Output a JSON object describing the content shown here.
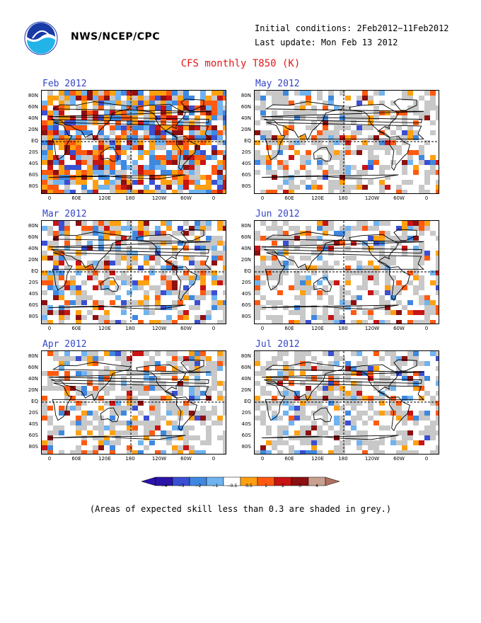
{
  "header": {
    "org": "NWS/NCEP/CPC",
    "initial_conditions": "Initial conditions: 2Feb2012−11Feb2012",
    "last_update": "Last update: Mon Feb 13 2012",
    "title": "CFS monthly T850 (K)"
  },
  "logo_icon": "noaa-logo-icon",
  "panels": [
    {
      "title": "Feb 2012",
      "intensity": 1.0
    },
    {
      "title": "May 2012",
      "intensity": 0.35
    },
    {
      "title": "Mar 2012",
      "intensity": 0.55
    },
    {
      "title": "Jun 2012",
      "intensity": 0.35
    },
    {
      "title": "Apr 2012",
      "intensity": 0.45
    },
    {
      "title": "Jul 2012",
      "intensity": 0.35
    }
  ],
  "lat_labels": [
    "80N",
    "60N",
    "40N",
    "20N",
    "EQ",
    "20S",
    "40S",
    "60S",
    "80S"
  ],
  "lon_labels": [
    "0",
    "60E",
    "120E",
    "180",
    "120W",
    "60W",
    "0"
  ],
  "colorbar": {
    "labels": [
      "−4",
      "−3",
      "−2",
      "−1",
      "−0.5",
      "0.5",
      "1",
      "2",
      "3",
      "4"
    ],
    "colors": [
      "#2a14a8",
      "#3a4fd2",
      "#3f88e0",
      "#6fb3f0",
      "#ffffff",
      "#ffa010",
      "#ff5a10",
      "#c81414",
      "#8c1010",
      "#c8a090"
    ]
  },
  "note": "(Areas of expected skill less than 0.3 are shaded in grey.)"
}
